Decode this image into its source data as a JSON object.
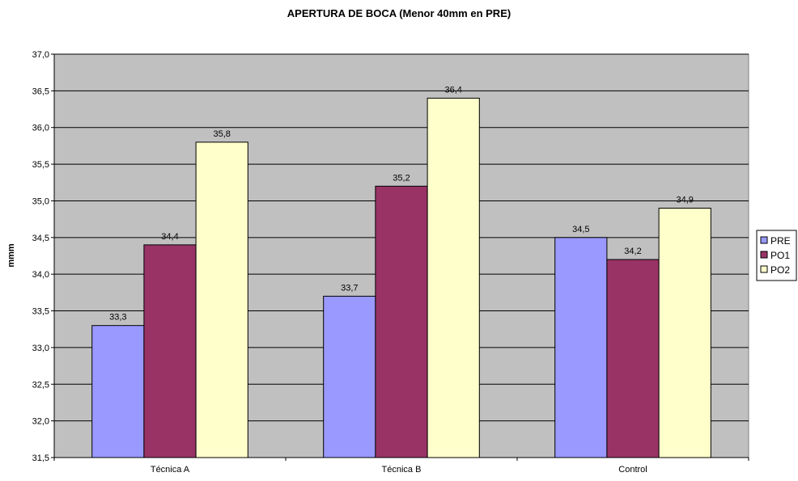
{
  "chart_data": {
    "type": "bar",
    "title": "APERTURA DE BOCA (Menor 40mm en PRE)",
    "xlabel": "",
    "ylabel": "mmm",
    "categories": [
      "Técnica A",
      "Técnica B",
      "Control"
    ],
    "series": [
      {
        "name": "PRE",
        "values": [
          33.3,
          33.7,
          34.5
        ],
        "labels": [
          "33,3",
          "33,7",
          "34,5"
        ],
        "color": "#9999ff"
      },
      {
        "name": "PO1",
        "values": [
          34.4,
          35.2,
          34.2
        ],
        "labels": [
          "34,4",
          "35,2",
          "34,2"
        ],
        "color": "#993366"
      },
      {
        "name": "PO2",
        "values": [
          35.8,
          36.4,
          34.9
        ],
        "labels": [
          "35,8",
          "36,4",
          "34,9"
        ],
        "color": "#ffffcc"
      }
    ],
    "ylim": [
      31.5,
      37.0
    ],
    "yticks": [
      31.5,
      32.0,
      32.5,
      33.0,
      33.5,
      34.0,
      34.5,
      35.0,
      35.5,
      36.0,
      36.5,
      37.0
    ],
    "ytick_labels": [
      "31,5",
      "32,0",
      "32,5",
      "33,0",
      "33,5",
      "34,0",
      "34,5",
      "35,0",
      "35,5",
      "36,0",
      "36,5",
      "37,0"
    ],
    "grid": true,
    "plot_background": "#c0c0c0",
    "legend_position": "right"
  }
}
